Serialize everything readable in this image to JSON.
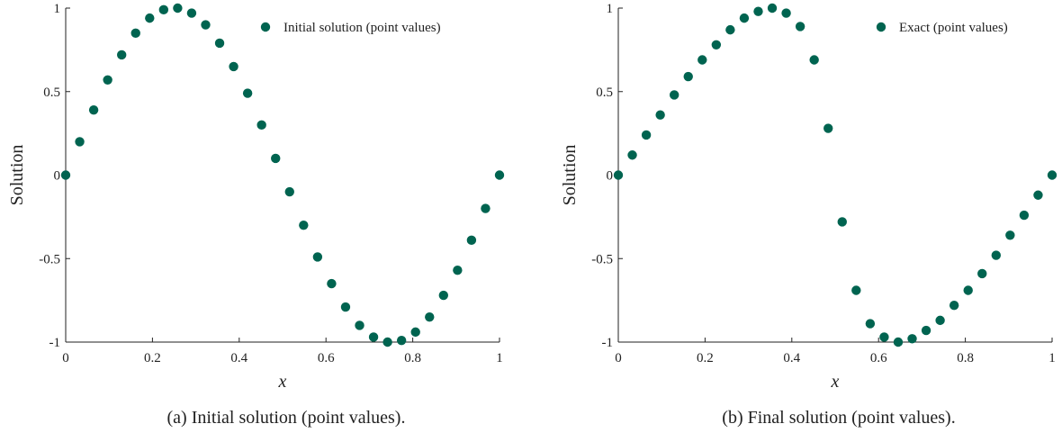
{
  "marker_color": "#006450",
  "chart_data": [
    {
      "type": "scatter",
      "caption": "(a) Initial solution (point values).",
      "xlabel": "x",
      "ylabel": "Solution",
      "xlim": [
        0,
        1
      ],
      "ylim": [
        -1,
        1
      ],
      "xticks": [
        "0",
        "0.2",
        "0.4",
        "0.6",
        "0.8",
        "1"
      ],
      "yticks": [
        "-1",
        "-0.5",
        "0",
        "0.5",
        "1"
      ],
      "legend_position": "top-right",
      "series": [
        {
          "name": "Initial solution (point values)",
          "x": [
            0,
            0.03226,
            0.06452,
            0.09677,
            0.12903,
            0.16129,
            0.19355,
            0.22581,
            0.25806,
            0.29032,
            0.32258,
            0.35484,
            0.3871,
            0.41935,
            0.45161,
            0.48387,
            0.51613,
            0.54839,
            0.58065,
            0.6129,
            0.64516,
            0.67742,
            0.70968,
            0.74194,
            0.77419,
            0.80645,
            0.83871,
            0.87097,
            0.90323,
            0.93548,
            0.96774,
            1
          ],
          "y": [
            0,
            0.2,
            0.39,
            0.57,
            0.72,
            0.85,
            0.94,
            0.99,
            1.0,
            0.97,
            0.9,
            0.79,
            0.65,
            0.49,
            0.3,
            0.1,
            -0.1,
            -0.3,
            -0.49,
            -0.65,
            -0.79,
            -0.9,
            -0.97,
            -1.0,
            -0.99,
            -0.94,
            -0.85,
            -0.72,
            -0.57,
            -0.39,
            -0.2,
            0
          ]
        }
      ]
    },
    {
      "type": "scatter",
      "caption": "(b) Final solution (point values).",
      "xlabel": "x",
      "ylabel": "Solution",
      "xlim": [
        0,
        1
      ],
      "ylim": [
        -1,
        1
      ],
      "xticks": [
        "0",
        "0.2",
        "0.4",
        "0.6",
        "0.8",
        "1"
      ],
      "yticks": [
        "-1",
        "-0.5",
        "0",
        "0.5",
        "1"
      ],
      "legend_position": "top-right",
      "series": [
        {
          "name": "Exact (point values)",
          "x": [
            0,
            0.03226,
            0.06452,
            0.09677,
            0.12903,
            0.16129,
            0.19355,
            0.22581,
            0.25806,
            0.29032,
            0.32258,
            0.35484,
            0.3871,
            0.41935,
            0.45161,
            0.48387,
            0.51613,
            0.54839,
            0.58065,
            0.6129,
            0.64516,
            0.67742,
            0.70968,
            0.74194,
            0.77419,
            0.80645,
            0.83871,
            0.87097,
            0.90323,
            0.93548,
            0.96774,
            1
          ],
          "y": [
            0,
            0.12,
            0.24,
            0.36,
            0.48,
            0.59,
            0.69,
            0.78,
            0.87,
            0.94,
            0.98,
            1.0,
            0.97,
            0.89,
            0.69,
            0.28,
            -0.28,
            -0.69,
            -0.89,
            -0.97,
            -1.0,
            -0.98,
            -0.93,
            -0.87,
            -0.78,
            -0.69,
            -0.59,
            -0.48,
            -0.36,
            -0.24,
            -0.12,
            0
          ]
        }
      ]
    }
  ]
}
